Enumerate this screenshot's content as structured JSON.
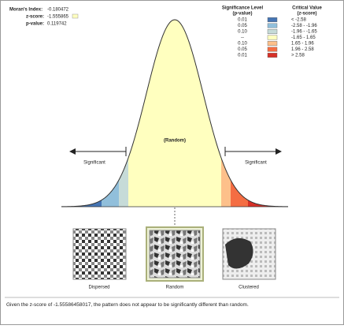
{
  "stats": {
    "moran_label": "Moran's Index:",
    "moran": "-0.180472",
    "z_label": "z-score:",
    "z": "-1.555865",
    "p_label": "p-value:",
    "p": "0.119742"
  },
  "legend": {
    "sig_title": "Significance Level",
    "sig_sub": "(p-value)",
    "crit_title": "Critical Value",
    "crit_sub": "(z-score)",
    "rows": [
      [
        "0.01",
        "< -2.58"
      ],
      [
        "0.05",
        "-2.58 - -1.96"
      ],
      [
        "0.10",
        "-1.96 - -1.65"
      ],
      [
        "--",
        "-1.65 - 1.65"
      ],
      [
        "0.10",
        "1.65 - 1.96"
      ],
      [
        "0.05",
        "1.96 - 2.58"
      ],
      [
        "0.01",
        "> 2.58"
      ]
    ]
  },
  "curve": {
    "left": "Significant",
    "center": "(Random)",
    "right": "Significant"
  },
  "maps": [
    "Dispersed",
    "Random",
    "Clustered"
  ],
  "summary": "Given the z-score of -1.55586458017, the pattern does not appear to be significantly different than random."
}
